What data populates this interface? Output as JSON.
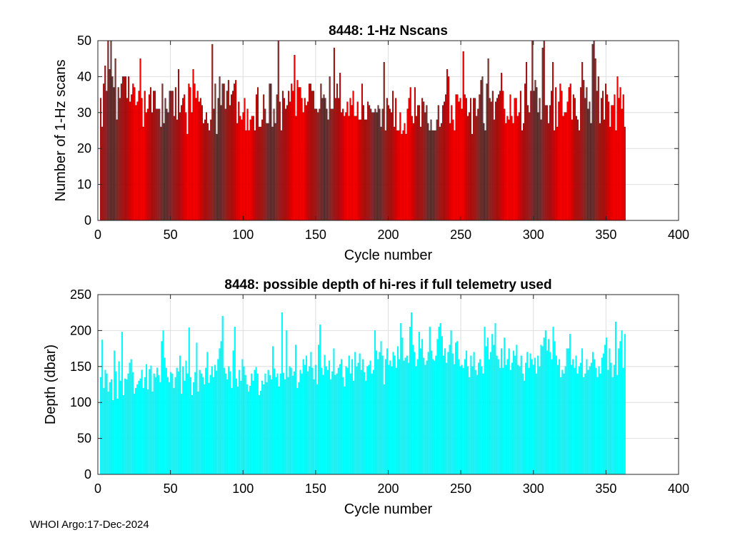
{
  "footer": "WHOI Argo:17-Dec-2024",
  "chart_data": [
    {
      "type": "bar",
      "title": "8448: 1-Hz Nscans",
      "xlabel": "Cycle number",
      "ylabel": "Number of 1-Hz scans",
      "xlim": [
        0,
        400
      ],
      "ylim": [
        0,
        50
      ],
      "xticks": [
        0,
        50,
        100,
        150,
        200,
        250,
        300,
        350,
        400
      ],
      "yticks": [
        0,
        10,
        20,
        30,
        40,
        50
      ],
      "grid": true,
      "bar_color": "#ff0000",
      "edge_color": "#000000",
      "x_start": 2,
      "x_end": 363,
      "values": [
        34,
        26,
        38,
        43,
        36,
        50,
        42,
        50,
        40,
        37,
        45,
        28,
        37,
        34,
        38,
        40,
        40,
        40,
        34,
        40,
        33,
        35,
        38,
        37,
        32,
        33,
        36,
        45,
        34,
        26,
        36,
        30,
        31,
        35,
        37,
        30,
        36,
        36,
        31,
        31,
        31,
        26,
        38,
        27,
        34,
        31,
        30,
        36,
        36,
        36,
        29,
        37,
        28,
        42,
        30,
        32,
        34,
        35,
        30,
        24,
        38,
        37,
        30,
        42,
        38,
        34,
        36,
        33,
        34,
        32,
        27,
        28,
        30,
        27,
        25,
        28,
        49,
        31,
        38,
        24,
        34,
        40,
        32,
        38,
        38,
        31,
        36,
        39,
        32,
        35,
        36,
        38,
        39,
        27,
        33,
        29,
        28,
        30,
        34,
        25,
        31,
        25,
        28,
        29,
        29,
        25,
        35,
        37,
        26,
        26,
        28,
        35,
        31,
        27,
        27,
        38,
        38,
        26,
        31,
        27,
        35,
        50,
        33,
        25,
        36,
        34,
        31,
        32,
        36,
        33,
        38,
        36,
        46,
        29,
        39,
        37,
        37,
        34,
        30,
        34,
        32,
        33,
        38,
        38,
        36,
        36,
        31,
        31,
        30,
        31,
        38,
        34,
        35,
        34,
        31,
        28,
        40,
        31,
        31,
        48,
        34,
        38,
        34,
        41,
        30,
        31,
        29,
        30,
        33,
        29,
        34,
        32,
        36,
        29,
        29,
        33,
        28,
        28,
        38,
        32,
        28,
        28,
        33,
        32,
        31,
        30,
        30,
        31,
        30,
        32,
        31,
        26,
        31,
        44,
        25,
        34,
        32,
        31,
        30,
        36,
        26,
        34,
        25,
        25,
        30,
        24,
        25,
        27,
        24,
        31,
        34,
        37,
        29,
        27,
        37,
        29,
        32,
        32,
        26,
        34,
        33,
        30,
        32,
        27,
        25,
        28,
        25,
        25,
        25,
        28,
        32,
        26,
        27,
        32,
        33,
        35,
        42,
        40,
        27,
        32,
        28,
        25,
        35,
        35,
        33,
        34,
        31,
        47,
        35,
        34,
        29,
        30,
        34,
        24,
        34,
        34,
        29,
        31,
        35,
        39,
        40,
        27,
        25,
        38,
        45,
        34,
        33,
        36,
        28,
        33,
        34,
        35,
        36,
        41,
        36,
        31,
        27,
        29,
        28,
        35,
        29,
        27,
        34,
        34,
        29,
        30,
        36,
        25,
        27,
        38,
        44,
        32,
        30,
        36,
        50,
        36,
        39,
        37,
        30,
        34,
        28,
        48,
        50,
        32,
        32,
        27,
        32,
        36,
        44,
        25,
        37,
        26,
        33,
        38,
        36,
        29,
        30,
        30,
        33,
        37,
        38,
        28,
        35,
        34,
        29,
        28,
        25,
        37,
        44,
        39,
        34,
        37,
        31,
        33,
        27,
        49,
        50,
        45,
        36,
        40,
        27,
        34,
        36,
        28,
        38,
        35,
        33,
        26,
        32,
        32,
        35,
        25,
        40,
        34,
        37,
        31,
        35,
        26
      ]
    },
    {
      "type": "bar",
      "title": "8448: possible depth of hi-res if full telemetry used",
      "xlabel": "Cycle number",
      "ylabel": "Depth (dbar)",
      "xlim": [
        0,
        400
      ],
      "ylim": [
        0,
        250
      ],
      "xticks": [
        0,
        50,
        100,
        150,
        200,
        250,
        300,
        350,
        400
      ],
      "yticks": [
        0,
        50,
        100,
        150,
        200,
        250
      ],
      "grid": true,
      "bar_color": "#00ffff",
      "edge_color": "#00e5e5",
      "x_start": 2,
      "x_end": 363,
      "values": [
        135,
        187,
        120,
        145,
        140,
        115,
        128,
        132,
        103,
        172,
        143,
        105,
        157,
        130,
        198,
        110,
        133,
        132,
        140,
        155,
        160,
        142,
        112,
        120,
        125,
        130,
        133,
        145,
        120,
        135,
        153,
        118,
        146,
        151,
        115,
        140,
        135,
        148,
        138,
        128,
        185,
        200,
        162,
        148,
        135,
        128,
        142,
        140,
        120,
        135,
        148,
        143,
        165,
        112,
        150,
        130,
        158,
        140,
        204,
        135,
        110,
        128,
        142,
        183,
        115,
        145,
        140,
        135,
        125,
        148,
        170,
        127,
        138,
        150,
        135,
        152,
        144,
        160,
        175,
        185,
        220,
        148,
        140,
        132,
        150,
        143,
        120,
        172,
        205,
        133,
        122,
        145,
        130,
        160,
        150,
        138,
        125,
        115,
        123,
        140,
        130,
        145,
        149,
        140,
        110,
        116,
        130,
        125,
        140,
        128,
        145,
        138,
        132,
        178,
        147,
        135,
        140,
        122,
        140,
        225,
        141,
        132,
        200,
        135,
        150,
        148,
        137,
        143,
        180,
        120,
        128,
        145,
        140,
        160,
        152,
        165,
        143,
        150,
        170,
        148,
        132,
        152,
        125,
        180,
        208,
        148,
        138,
        166,
        150,
        145,
        158,
        132,
        143,
        175,
        138,
        140,
        148,
        153,
        160,
        135,
        122,
        150,
        148,
        165,
        140,
        160,
        130,
        170,
        150,
        155,
        168,
        145,
        160,
        142,
        130,
        150,
        152,
        158,
        140,
        145,
        200,
        172,
        160,
        170,
        185,
        165,
        125,
        160,
        175,
        152,
        158,
        150,
        170,
        165,
        148,
        178,
        160,
        210,
        190,
        158,
        162,
        165,
        155,
        205,
        225,
        180,
        170,
        150,
        160,
        198,
        175,
        188,
        162,
        152,
        158,
        170,
        205,
        172,
        160,
        158,
        165,
        188,
        205,
        210,
        192,
        165,
        175,
        155,
        170,
        180,
        200,
        168,
        153,
        183,
        185,
        160,
        150,
        152,
        148,
        160,
        172,
        150,
        135,
        165,
        150,
        170,
        145,
        138,
        155,
        160,
        150,
        140,
        205,
        178,
        190,
        160,
        170,
        195,
        180,
        210,
        165,
        160,
        148,
        175,
        148,
        190,
        152,
        160,
        175,
        145,
        155,
        172,
        165,
        180,
        152,
        150,
        165,
        140,
        130,
        155,
        170,
        148,
        168,
        160,
        152,
        162,
        140,
        165,
        150,
        180,
        178,
        190,
        200,
        172,
        188,
        170,
        160,
        205,
        185,
        165,
        152,
        160,
        135,
        145,
        140,
        150,
        175,
        175,
        195,
        152,
        160,
        148,
        165,
        140,
        150,
        155,
        175,
        135,
        140,
        160,
        145,
        150,
        155,
        170,
        160,
        148,
        135,
        150,
        140,
        162,
        168,
        180,
        190,
        145,
        175,
        155,
        135,
        152,
        212,
        138,
        175,
        185,
        200,
        148,
        195
      ]
    }
  ]
}
